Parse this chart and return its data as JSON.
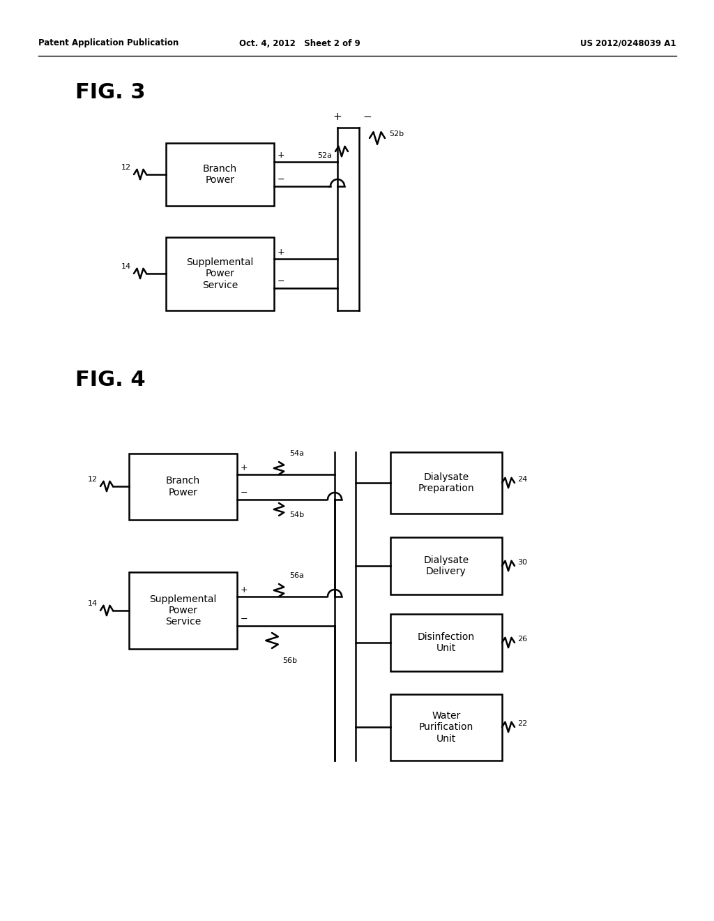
{
  "header_left": "Patent Application Publication",
  "header_mid": "Oct. 4, 2012   Sheet 2 of 9",
  "header_right": "US 2012/0248039 A1",
  "fig3_label": "FIG. 3",
  "fig4_label": "FIG. 4",
  "background": "#ffffff",
  "line_color": "#000000",
  "box_color": "#ffffff",
  "box_edge": "#000000"
}
